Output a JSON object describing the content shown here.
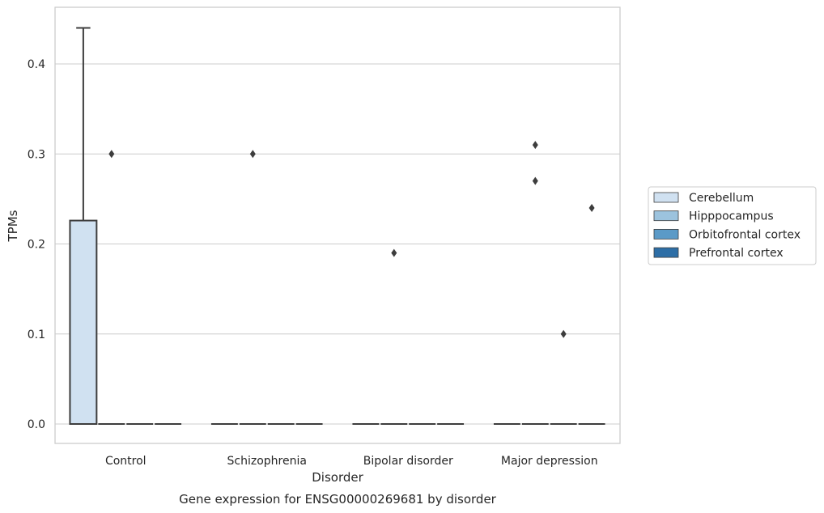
{
  "chart_data": {
    "type": "box",
    "title": "",
    "caption": "Gene expression for ENSG00000269681 by disorder",
    "xlabel": "Disorder",
    "ylabel": "TPMs",
    "ylim": [
      -0.022,
      0.464
    ],
    "yticks": [
      0.0,
      0.1,
      0.2,
      0.3,
      0.4
    ],
    "ytick_labels": [
      "0.0",
      "0.1",
      "0.2",
      "0.3",
      "0.4"
    ],
    "grid": true,
    "legend_position": "right",
    "categories": [
      "Control",
      "Schizophrenia",
      "Bipolar disorder",
      "Major depression"
    ],
    "series": [
      {
        "name": "Cerebellum",
        "color": "#d0e1f1",
        "boxes": [
          {
            "q1": 0.0,
            "median": 0.0,
            "q3": 0.226,
            "whisker_low": 0.0,
            "whisker_high": 0.44,
            "outliers": []
          },
          {
            "q1": 0.0,
            "median": 0.0,
            "q3": 0.0,
            "whisker_low": 0.0,
            "whisker_high": 0.0,
            "outliers": []
          },
          {
            "q1": 0.0,
            "median": 0.0,
            "q3": 0.0,
            "whisker_low": 0.0,
            "whisker_high": 0.0,
            "outliers": []
          },
          {
            "q1": 0.0,
            "median": 0.0,
            "q3": 0.0,
            "whisker_low": 0.0,
            "whisker_high": 0.0,
            "outliers": []
          }
        ]
      },
      {
        "name": "Hipppocampus",
        "color": "#9cc3de",
        "boxes": [
          {
            "q1": 0.0,
            "median": 0.0,
            "q3": 0.0,
            "whisker_low": 0.0,
            "whisker_high": 0.0,
            "outliers": [
              0.3
            ]
          },
          {
            "q1": 0.0,
            "median": 0.0,
            "q3": 0.0,
            "whisker_low": 0.0,
            "whisker_high": 0.0,
            "outliers": [
              0.3
            ]
          },
          {
            "q1": 0.0,
            "median": 0.0,
            "q3": 0.0,
            "whisker_low": 0.0,
            "whisker_high": 0.0,
            "outliers": [
              0.19
            ]
          },
          {
            "q1": 0.0,
            "median": 0.0,
            "q3": 0.0,
            "whisker_low": 0.0,
            "whisker_high": 0.0,
            "outliers": [
              0.31,
              0.27
            ]
          }
        ]
      },
      {
        "name": "Orbitofrontal cortex",
        "color": "#5b9ac7",
        "boxes": [
          {
            "q1": 0.0,
            "median": 0.0,
            "q3": 0.0,
            "whisker_low": 0.0,
            "whisker_high": 0.0,
            "outliers": []
          },
          {
            "q1": 0.0,
            "median": 0.0,
            "q3": 0.0,
            "whisker_low": 0.0,
            "whisker_high": 0.0,
            "outliers": []
          },
          {
            "q1": 0.0,
            "median": 0.0,
            "q3": 0.0,
            "whisker_low": 0.0,
            "whisker_high": 0.0,
            "outliers": []
          },
          {
            "q1": 0.0,
            "median": 0.0,
            "q3": 0.0,
            "whisker_low": 0.0,
            "whisker_high": 0.0,
            "outliers": [
              0.1
            ]
          }
        ]
      },
      {
        "name": "Prefrontal cortex",
        "color": "#2d6ea6",
        "boxes": [
          {
            "q1": 0.0,
            "median": 0.0,
            "q3": 0.0,
            "whisker_low": 0.0,
            "whisker_high": 0.0,
            "outliers": []
          },
          {
            "q1": 0.0,
            "median": 0.0,
            "q3": 0.0,
            "whisker_low": 0.0,
            "whisker_high": 0.0,
            "outliers": []
          },
          {
            "q1": 0.0,
            "median": 0.0,
            "q3": 0.0,
            "whisker_low": 0.0,
            "whisker_high": 0.0,
            "outliers": []
          },
          {
            "q1": 0.0,
            "median": 0.0,
            "q3": 0.0,
            "whisker_low": 0.0,
            "whisker_high": 0.0,
            "outliers": [
              0.24
            ]
          }
        ]
      }
    ]
  }
}
